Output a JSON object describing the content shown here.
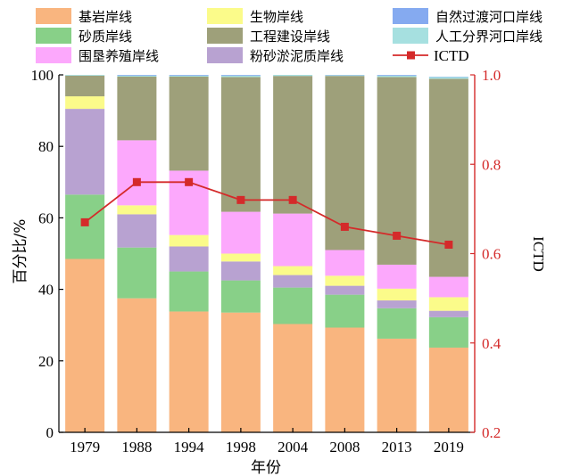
{
  "chart_data": {
    "type": "bar",
    "stacked": true,
    "categories": [
      "1979",
      "1988",
      "1994",
      "1998",
      "2004",
      "2008",
      "2013",
      "2019"
    ],
    "xlabel": "年份",
    "ylabel": "百分比/%",
    "ylim": [
      0,
      100
    ],
    "yticks": [
      0,
      20,
      40,
      60,
      80,
      100
    ],
    "y2label": "ICTD",
    "y2lim": [
      0.2,
      1.0
    ],
    "y2ticks": [
      "0.2",
      "0.4",
      "0.6",
      "0.8",
      "1.0"
    ],
    "grid": false,
    "legend_position": "top",
    "series": [
      {
        "name": "基岩岸线",
        "color": "#f9b57f",
        "values": [
          48.5,
          37.5,
          33.8,
          33.5,
          30.3,
          29.3,
          26.2,
          23.7
        ]
      },
      {
        "name": "砂质岸线",
        "color": "#88d088",
        "values": [
          18.0,
          14.2,
          11.2,
          9.0,
          10.2,
          9.2,
          8.5,
          8.5
        ]
      },
      {
        "name": "粉砂淤泥质岸线",
        "color": "#b8a2d1",
        "values": [
          24.0,
          9.3,
          7.0,
          5.3,
          3.5,
          2.5,
          2.2,
          1.8
        ]
      },
      {
        "name": "生物岸线",
        "color": "#fbfb8a",
        "values": [
          3.5,
          2.5,
          3.2,
          2.2,
          2.5,
          2.8,
          3.3,
          3.8
        ]
      },
      {
        "name": "围垦养殖岸线",
        "color": "#fca8fc",
        "values": [
          0.0,
          18.2,
          18.0,
          11.7,
          14.7,
          7.2,
          6.7,
          5.7
        ]
      },
      {
        "name": "工程建设岸线",
        "color": "#9ea07a",
        "values": [
          5.8,
          17.8,
          26.3,
          37.7,
          38.5,
          48.7,
          52.5,
          55.4
        ]
      },
      {
        "name": "人工分界河口岸线",
        "color": "#a6e0e0",
        "values": [
          0.2,
          0.3,
          0.3,
          0.4,
          0.3,
          0.2,
          0.4,
          0.5
        ]
      },
      {
        "name": "自然过渡河口岸线",
        "color": "#85aaf0",
        "values": [
          0.0,
          0.2,
          0.2,
          0.2,
          0.0,
          0.1,
          0.2,
          0.1
        ]
      }
    ],
    "line_series": {
      "name": "ICTD",
      "color": "#d42a2a",
      "axis": "right",
      "values": [
        0.67,
        0.76,
        0.76,
        0.72,
        0.72,
        0.66,
        0.64,
        0.62
      ]
    },
    "legend": [
      {
        "name": "基岩岸线",
        "kind": "box",
        "color": "#f9b57f"
      },
      {
        "name": "生物岸线",
        "kind": "box",
        "color": "#fbfb8a"
      },
      {
        "name": "自然过渡河口岸线",
        "kind": "box",
        "color": "#85aaf0"
      },
      {
        "name": "砂质岸线",
        "kind": "box",
        "color": "#88d088"
      },
      {
        "name": "工程建设岸线",
        "kind": "box",
        "color": "#9ea07a"
      },
      {
        "name": "人工分界河口岸线",
        "kind": "box",
        "color": "#a6e0e0"
      },
      {
        "name": "围垦养殖岸线",
        "kind": "box",
        "color": "#fca8fc"
      },
      {
        "name": "粉砂淤泥质岸线",
        "kind": "box",
        "color": "#b8a2d1"
      },
      {
        "name": "ICTD",
        "kind": "line",
        "color": "#d42a2a"
      }
    ]
  }
}
